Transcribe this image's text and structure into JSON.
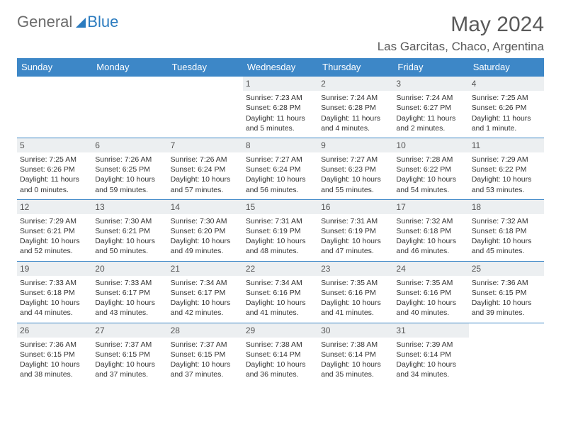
{
  "logo": {
    "text_gray": "General",
    "text_blue": "Blue"
  },
  "title": "May 2024",
  "location": "Las Garcitas, Chaco, Argentina",
  "colors": {
    "header_bg": "#3d87c7",
    "border": "#3d87c7",
    "daynum_bg": "#eceff1",
    "text": "#333333",
    "logo_gray": "#6b6b6b",
    "logo_blue": "#2b7bbf"
  },
  "weekdays": [
    "Sunday",
    "Monday",
    "Tuesday",
    "Wednesday",
    "Thursday",
    "Friday",
    "Saturday"
  ],
  "weeks": [
    [
      {
        "n": null
      },
      {
        "n": null
      },
      {
        "n": null
      },
      {
        "n": 1,
        "r": "7:23 AM",
        "s": "6:28 PM",
        "d": "11 hours and 5 minutes."
      },
      {
        "n": 2,
        "r": "7:24 AM",
        "s": "6:28 PM",
        "d": "11 hours and 4 minutes."
      },
      {
        "n": 3,
        "r": "7:24 AM",
        "s": "6:27 PM",
        "d": "11 hours and 2 minutes."
      },
      {
        "n": 4,
        "r": "7:25 AM",
        "s": "6:26 PM",
        "d": "11 hours and 1 minute."
      }
    ],
    [
      {
        "n": 5,
        "r": "7:25 AM",
        "s": "6:26 PM",
        "d": "11 hours and 0 minutes."
      },
      {
        "n": 6,
        "r": "7:26 AM",
        "s": "6:25 PM",
        "d": "10 hours and 59 minutes."
      },
      {
        "n": 7,
        "r": "7:26 AM",
        "s": "6:24 PM",
        "d": "10 hours and 57 minutes."
      },
      {
        "n": 8,
        "r": "7:27 AM",
        "s": "6:24 PM",
        "d": "10 hours and 56 minutes."
      },
      {
        "n": 9,
        "r": "7:27 AM",
        "s": "6:23 PM",
        "d": "10 hours and 55 minutes."
      },
      {
        "n": 10,
        "r": "7:28 AM",
        "s": "6:22 PM",
        "d": "10 hours and 54 minutes."
      },
      {
        "n": 11,
        "r": "7:29 AM",
        "s": "6:22 PM",
        "d": "10 hours and 53 minutes."
      }
    ],
    [
      {
        "n": 12,
        "r": "7:29 AM",
        "s": "6:21 PM",
        "d": "10 hours and 52 minutes."
      },
      {
        "n": 13,
        "r": "7:30 AM",
        "s": "6:21 PM",
        "d": "10 hours and 50 minutes."
      },
      {
        "n": 14,
        "r": "7:30 AM",
        "s": "6:20 PM",
        "d": "10 hours and 49 minutes."
      },
      {
        "n": 15,
        "r": "7:31 AM",
        "s": "6:19 PM",
        "d": "10 hours and 48 minutes."
      },
      {
        "n": 16,
        "r": "7:31 AM",
        "s": "6:19 PM",
        "d": "10 hours and 47 minutes."
      },
      {
        "n": 17,
        "r": "7:32 AM",
        "s": "6:18 PM",
        "d": "10 hours and 46 minutes."
      },
      {
        "n": 18,
        "r": "7:32 AM",
        "s": "6:18 PM",
        "d": "10 hours and 45 minutes."
      }
    ],
    [
      {
        "n": 19,
        "r": "7:33 AM",
        "s": "6:18 PM",
        "d": "10 hours and 44 minutes."
      },
      {
        "n": 20,
        "r": "7:33 AM",
        "s": "6:17 PM",
        "d": "10 hours and 43 minutes."
      },
      {
        "n": 21,
        "r": "7:34 AM",
        "s": "6:17 PM",
        "d": "10 hours and 42 minutes."
      },
      {
        "n": 22,
        "r": "7:34 AM",
        "s": "6:16 PM",
        "d": "10 hours and 41 minutes."
      },
      {
        "n": 23,
        "r": "7:35 AM",
        "s": "6:16 PM",
        "d": "10 hours and 41 minutes."
      },
      {
        "n": 24,
        "r": "7:35 AM",
        "s": "6:16 PM",
        "d": "10 hours and 40 minutes."
      },
      {
        "n": 25,
        "r": "7:36 AM",
        "s": "6:15 PM",
        "d": "10 hours and 39 minutes."
      }
    ],
    [
      {
        "n": 26,
        "r": "7:36 AM",
        "s": "6:15 PM",
        "d": "10 hours and 38 minutes."
      },
      {
        "n": 27,
        "r": "7:37 AM",
        "s": "6:15 PM",
        "d": "10 hours and 37 minutes."
      },
      {
        "n": 28,
        "r": "7:37 AM",
        "s": "6:15 PM",
        "d": "10 hours and 37 minutes."
      },
      {
        "n": 29,
        "r": "7:38 AM",
        "s": "6:14 PM",
        "d": "10 hours and 36 minutes."
      },
      {
        "n": 30,
        "r": "7:38 AM",
        "s": "6:14 PM",
        "d": "10 hours and 35 minutes."
      },
      {
        "n": 31,
        "r": "7:39 AM",
        "s": "6:14 PM",
        "d": "10 hours and 34 minutes."
      },
      {
        "n": null
      }
    ]
  ],
  "labels": {
    "sunrise": "Sunrise: ",
    "sunset": "Sunset: ",
    "daylight": "Daylight: "
  }
}
